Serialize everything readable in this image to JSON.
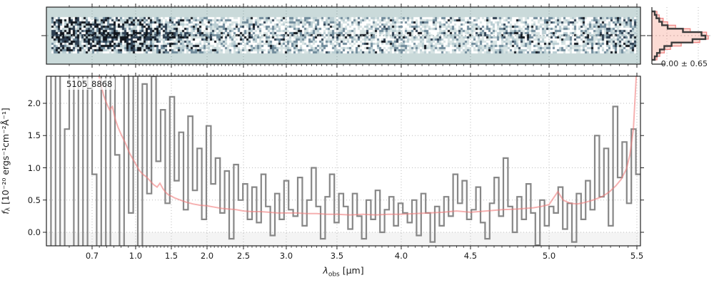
{
  "figure": {
    "background": "#ffffff"
  },
  "annotation": {
    "object_id": "5105_8868"
  },
  "axis_labels": {
    "x_symbol": "λ",
    "x_sub": "obs",
    "x_unit": " [μm]",
    "y_symbol": "f",
    "y_sub": "λ",
    "y_unit": " [10⁻²⁰ ergs⁻¹cm⁻²Å⁻¹]"
  },
  "histogram_stat": "0.00 ± 0.65",
  "colors": {
    "spine": "#222222",
    "grid_main": "#bbbbbb",
    "grid_2d": "#93a4a4",
    "flux_steps": "#878787",
    "uncertainty_line": "rgba(240,125,125,0.6)",
    "below_zero_shade": "#f4f4f4",
    "hist_dark": "#3b3b3b",
    "hist_fill": "rgba(247,152,131,0.35)",
    "hist_stroke": "rgba(240,125,125,0.9)",
    "panel2d_background": "#cadada"
  },
  "chart_data": [
    {
      "type": "heatmap",
      "panel": "2d-spectrum",
      "description": "rectified 2D spectrogram noise texture with dark trace along center row",
      "x_range_um": [
        0.6,
        5.53
      ],
      "background_color": "#cadada",
      "noise_palette": [
        "#10151c",
        "#2c3e50",
        "#6f8a9a",
        "#b9cdd2",
        "#ffffff",
        "#d8e4e4"
      ],
      "band_frac": [
        0.18,
        0.79
      ],
      "seed": 987654321
    },
    {
      "type": "line",
      "panel": "1d-spectrum",
      "title_annotation": "5105_8868",
      "xlabel": "λ_obs [μm]",
      "ylabel": "f_λ [10⁻²⁰ ergs⁻¹cm⁻²Å⁻¹]",
      "xlim_um": [
        0.6,
        5.53
      ],
      "ylim": [
        -0.21,
        2.42
      ],
      "x_ticks": [
        0.7,
        1.0,
        1.5,
        2.0,
        2.5,
        3.0,
        3.5,
        4.0,
        4.5,
        5.0,
        5.5
      ],
      "x_tick_labels": [
        "0.7",
        "1.0",
        "1.5",
        "2.0",
        "2.5",
        "3.0",
        "3.5",
        "4.0",
        "4.5",
        "5.0",
        "5.5"
      ],
      "y_ticks": [
        0.0,
        0.5,
        1.0,
        1.5,
        2.0
      ],
      "y_tick_labels": [
        "0.0",
        "0.5",
        "1.0",
        "1.5",
        "2.0"
      ],
      "minor_tick_step_um": 0.05,
      "grid": true,
      "x_axis_anchors": {
        "wavelength_um": [
          0.6,
          0.7,
          1.0,
          1.5,
          2.0,
          2.5,
          3.0,
          3.5,
          4.0,
          4.5,
          5.0,
          5.5,
          5.53
        ],
        "axis_fraction": [
          0.0,
          0.0769,
          0.1502,
          0.2103,
          0.2704,
          0.3317,
          0.4038,
          0.4891,
          0.5973,
          0.7139,
          0.8462,
          0.994,
          1.0
        ]
      },
      "series": [
        {
          "name": "observed flux (binned steps)",
          "style": "steps",
          "color": "#878787",
          "n_bins": 130,
          "bins_uniform_in": "axis_fraction 0 to 1",
          "values": [
            2.8,
            -0.5,
            2.6,
            -0.4,
            1.6,
            2.9,
            -0.5,
            2.7,
            -0.45,
            2.8,
            0.9,
            -0.5,
            2.6,
            -0.4,
            2.9,
            1.2,
            -0.5,
            2.7,
            0.3,
            2.5,
            -0.35,
            2.3,
            0.6,
            2.42,
            1.1,
            1.9,
            0.45,
            2.1,
            0.8,
            1.55,
            0.35,
            1.8,
            0.65,
            1.3,
            0.2,
            1.65,
            0.75,
            1.15,
            0.3,
            0.95,
            -0.1,
            1.05,
            0.5,
            0.75,
            0.2,
            0.7,
            0.15,
            0.9,
            0.4,
            -0.05,
            0.6,
            0.2,
            0.8,
            0.35,
            0.25,
            0.85,
            0.1,
            0.5,
            1.0,
            0.4,
            -0.1,
            0.55,
            0.9,
            0.15,
            0.6,
            0.4,
            0.05,
            0.6,
            0.25,
            -0.1,
            0.5,
            0.2,
            0.65,
            0.0,
            0.35,
            0.55,
            0.1,
            0.45,
            0.3,
            0.15,
            0.5,
            -0.05,
            0.6,
            0.3,
            -0.15,
            0.4,
            0.1,
            0.55,
            0.25,
            0.9,
            0.45,
            0.8,
            0.2,
            0.35,
            0.7,
            0.15,
            -0.1,
            0.45,
            0.85,
            0.25,
            1.15,
            0.4,
            0.0,
            0.55,
            0.2,
            0.75,
            0.3,
            -0.2,
            0.5,
            0.1,
            0.4,
            0.3,
            0.7,
            0.05,
            0.45,
            -0.15,
            0.6,
            0.2,
            0.8,
            0.35,
            1.5,
            0.55,
            1.3,
            0.1,
            1.95,
            0.85,
            1.4,
            0.45,
            1.6,
            0.9
          ]
        },
        {
          "name": "1-sigma uncertainty",
          "style": "line",
          "color": "rgba(240,125,125,0.6)",
          "wavelength_um": [
            0.74,
            0.76,
            0.78,
            0.8,
            0.82,
            0.84,
            0.86,
            0.88,
            0.9,
            0.93,
            0.96,
            1.0,
            1.05,
            1.1,
            1.15,
            1.2,
            1.25,
            1.3,
            1.34,
            1.38,
            1.42,
            1.46,
            1.5,
            1.55,
            1.6,
            1.7,
            1.8,
            1.9,
            2.0,
            2.1,
            2.2,
            2.3,
            2.4,
            2.5,
            2.6,
            2.7,
            2.8,
            2.9,
            3.0,
            3.1,
            3.2,
            3.3,
            3.4,
            3.5,
            3.6,
            3.7,
            3.8,
            3.9,
            4.0,
            4.1,
            4.2,
            4.3,
            4.4,
            4.5,
            4.6,
            4.7,
            4.8,
            4.9,
            4.95,
            5.0,
            5.05,
            5.08,
            5.12,
            5.16,
            5.2,
            5.25,
            5.3,
            5.34,
            5.38,
            5.41,
            5.44,
            5.46,
            5.48,
            5.5
          ],
          "values": [
            2.5,
            2.3,
            2.12,
            2.0,
            1.9,
            1.95,
            1.75,
            1.62,
            1.52,
            1.38,
            1.22,
            1.06,
            0.96,
            0.9,
            0.86,
            0.8,
            0.74,
            0.7,
            0.76,
            0.68,
            0.62,
            0.58,
            0.56,
            0.53,
            0.51,
            0.47,
            0.44,
            0.42,
            0.41,
            0.39,
            0.37,
            0.36,
            0.35,
            0.33,
            0.32,
            0.32,
            0.31,
            0.3,
            0.3,
            0.3,
            0.29,
            0.29,
            0.28,
            0.28,
            0.27,
            0.28,
            0.27,
            0.28,
            0.28,
            0.29,
            0.3,
            0.31,
            0.33,
            0.31,
            0.33,
            0.35,
            0.36,
            0.38,
            0.4,
            0.43,
            0.63,
            0.5,
            0.45,
            0.44,
            0.46,
            0.5,
            0.55,
            0.62,
            0.72,
            0.82,
            0.98,
            1.2,
            1.6,
            2.6
          ]
        }
      ]
    },
    {
      "type": "bar",
      "panel": "residual-histogram",
      "orientation": "horizontal",
      "stat_label": "0.00 ± 0.65",
      "n_bins": 14,
      "series": [
        {
          "name": "residual distribution (data)",
          "color": "#3b3b3b",
          "values_frac": [
            0.05,
            0.08,
            0.13,
            0.18,
            0.28,
            0.55,
            0.88,
            0.95,
            0.72,
            0.35,
            0.22,
            0.14,
            0.09,
            0.05
          ]
        },
        {
          "name": "residual distribution (model)",
          "fill": "rgba(247,152,131,0.35)",
          "stroke": "rgba(240,125,125,0.9)",
          "values_frac": [
            0.09,
            0.13,
            0.2,
            0.28,
            0.42,
            0.68,
            0.97,
            1.0,
            0.85,
            0.52,
            0.33,
            0.22,
            0.14,
            0.09
          ]
        }
      ]
    }
  ]
}
